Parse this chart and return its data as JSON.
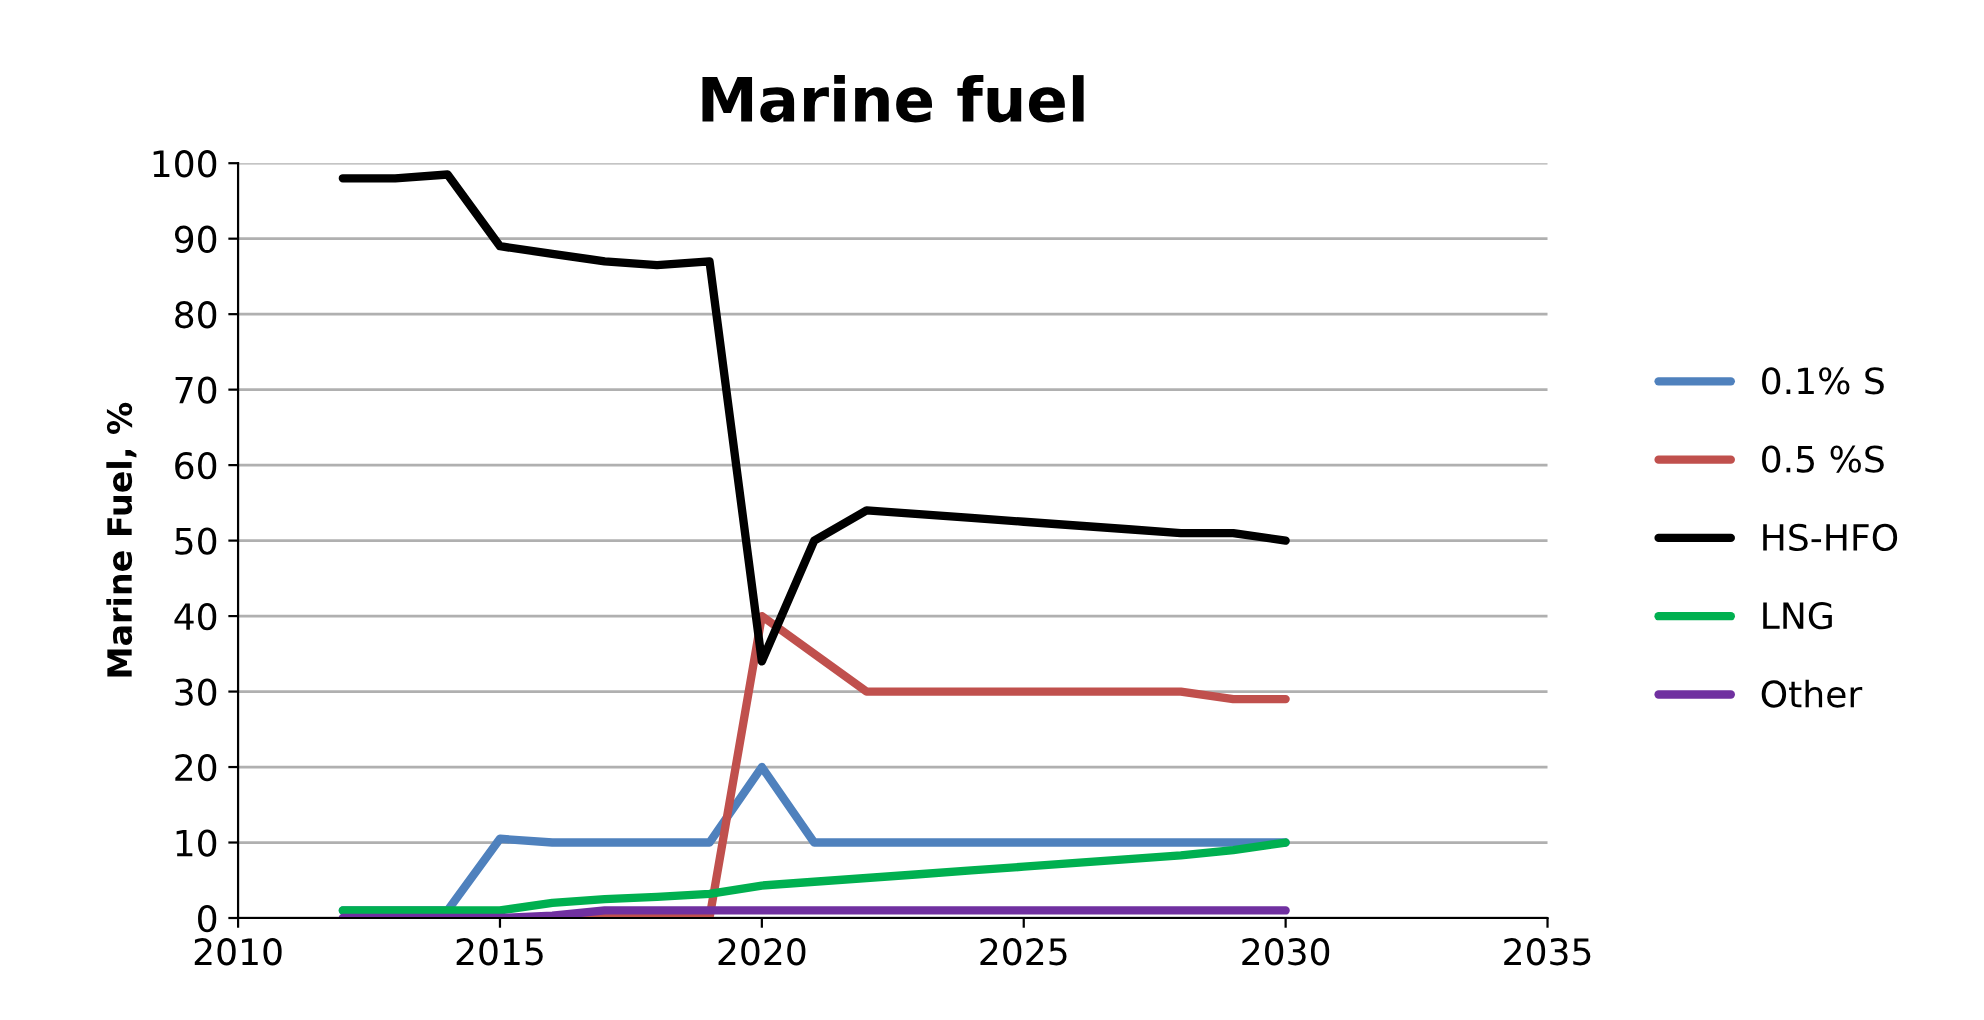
{
  "chart_data": {
    "type": "line",
    "title": "Marine fuel",
    "ylabel": "Marine Fuel, %",
    "x": [
      2012,
      2013,
      2014,
      2015,
      2016,
      2017,
      2018,
      2019,
      2020,
      2021,
      2022,
      2023,
      2024,
      2025,
      2026,
      2027,
      2028,
      2029,
      2030
    ],
    "series": [
      {
        "name": "0.1% S",
        "color": "#4f81bd",
        "values": [
          1,
          1,
          1,
          10.5,
          10,
          10,
          10,
          10,
          20,
          10,
          10,
          10,
          10,
          10,
          10,
          10,
          10,
          10,
          10
        ]
      },
      {
        "name": "0.5 %S",
        "color": "#c0504d",
        "values": [
          null,
          null,
          null,
          null,
          0,
          0,
          0,
          0,
          40,
          35,
          30,
          30,
          30,
          30,
          30,
          30,
          30,
          29,
          29
        ]
      },
      {
        "name": "HS-HFO",
        "color": "#000000",
        "values": [
          98,
          98,
          98.5,
          89,
          88,
          87,
          86.5,
          87,
          34,
          50,
          54,
          53.5,
          53,
          52.5,
          52,
          51.5,
          51,
          51,
          50
        ]
      },
      {
        "name": "LNG",
        "color": "#00b050",
        "values": [
          1,
          1,
          1,
          1,
          2,
          2.5,
          2.8,
          3.2,
          4.3,
          4.8,
          5.3,
          5.8,
          6.3,
          6.8,
          7.3,
          7.8,
          8.3,
          9,
          10
        ]
      },
      {
        "name": "Other",
        "color": "#7030a0",
        "values": [
          0,
          0,
          0,
          0,
          0.3,
          1,
          1,
          1,
          1,
          1,
          1,
          1,
          1,
          1,
          1,
          1,
          1,
          1,
          1
        ]
      }
    ],
    "xlim": [
      2010,
      2035
    ],
    "xticks": [
      2010,
      2015,
      2020,
      2025,
      2030,
      2035
    ],
    "ylim": [
      0,
      100
    ],
    "yticks": [
      0,
      10,
      20,
      30,
      40,
      50,
      60,
      70,
      80,
      90,
      100
    ],
    "grid": "y",
    "legend": "right",
    "marker": "none",
    "line_style": "solid"
  }
}
